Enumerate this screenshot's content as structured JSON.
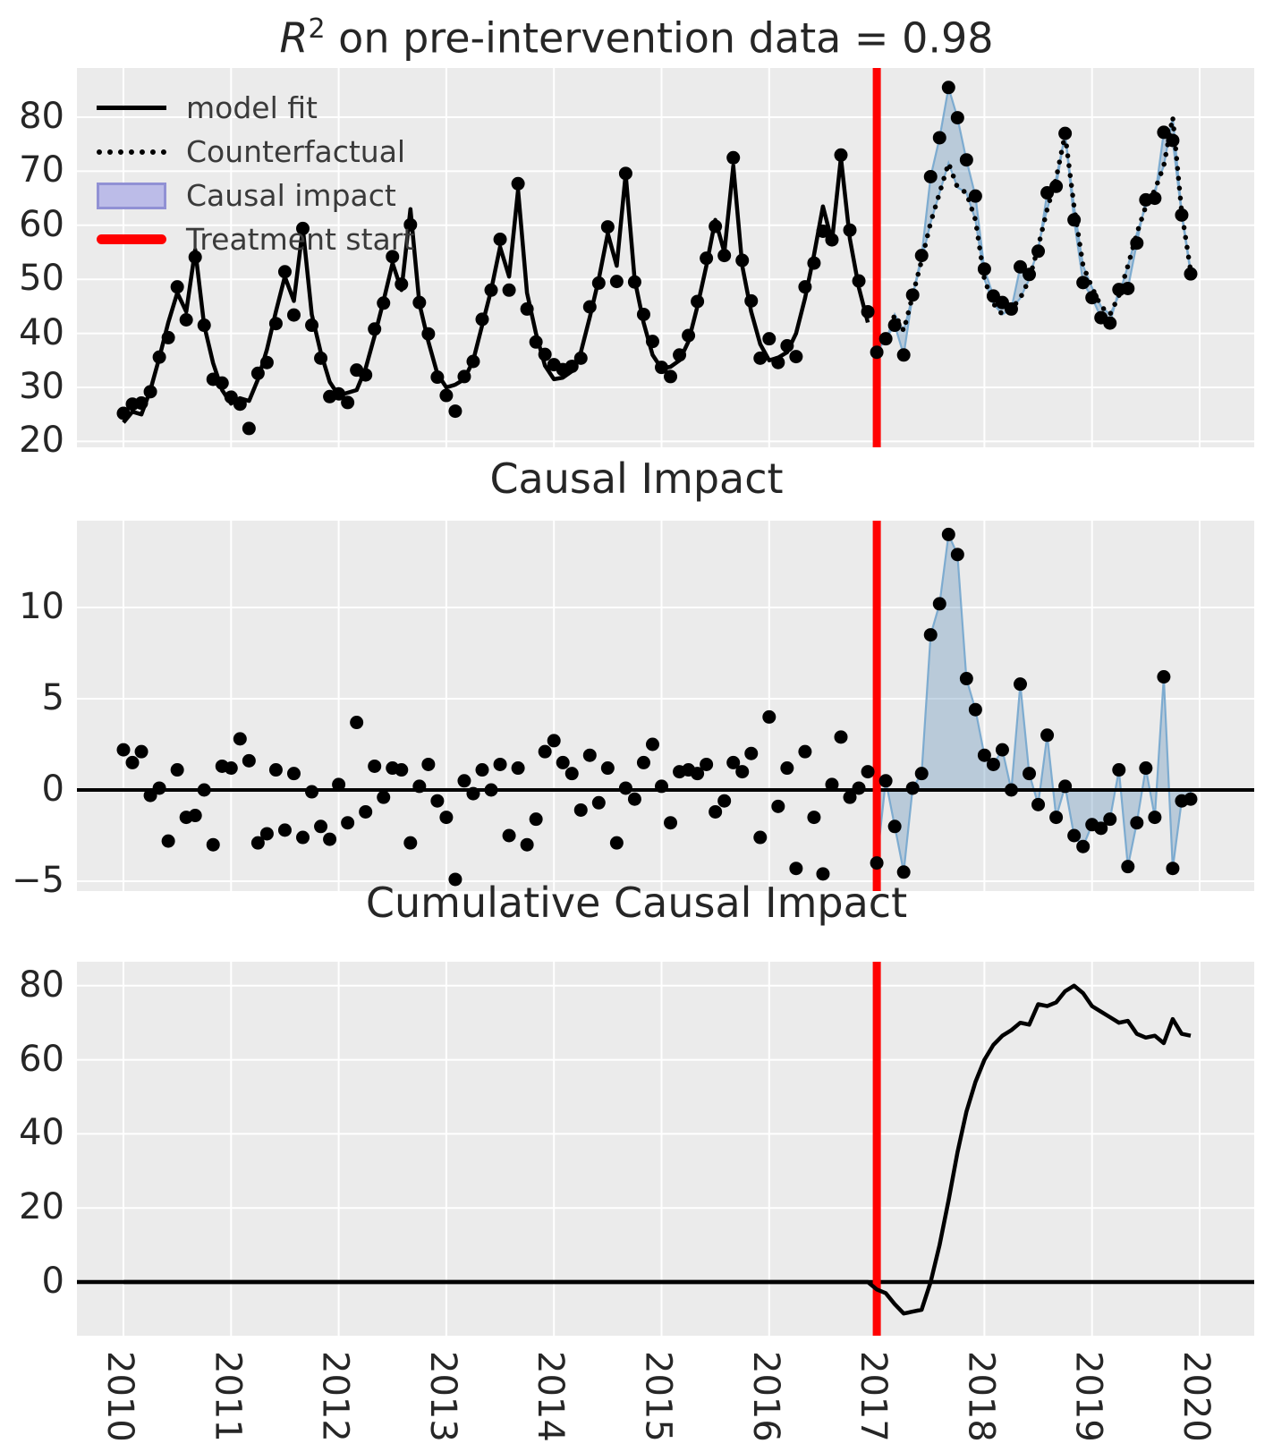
{
  "figure_title_parts": {
    "r": "R",
    "sup": "2",
    "rest": " on pre-intervention data = 0.98"
  },
  "titles": {
    "top": "R² on pre-intervention data = 0.98",
    "middle": "Causal Impact",
    "bottom": "Cumulative Causal Impact"
  },
  "legend": {
    "items": [
      {
        "label": "model fit",
        "sample": "solid-black-line"
      },
      {
        "label": "Counterfactual",
        "sample": "dotted-black-line"
      },
      {
        "label": "Causal impact",
        "sample": "lavender-patch"
      },
      {
        "label": "Treatment start",
        "sample": "red-thick-line"
      }
    ]
  },
  "colors": {
    "plot_bg": "#ebebeb",
    "grid": "#ffffff",
    "series_black": "#000000",
    "treatment_red": "#ff0000",
    "impact_fill": "#5b8db8",
    "impact_edge": "#6fa3cc",
    "legend_patch_fill": "#bcbce8",
    "legend_patch_edge": "#9191d4",
    "text": "#262626"
  },
  "axes": {
    "x_tick_labels": [
      "2010",
      "2011",
      "2012",
      "2013",
      "2014",
      "2015",
      "2016",
      "2017",
      "2018",
      "2019",
      "2020"
    ],
    "x_tick_values": [
      2010,
      2011,
      2012,
      2013,
      2014,
      2015,
      2016,
      2017,
      2018,
      2019,
      2020
    ],
    "treatment_start_x": 2017,
    "top_y_ticks": [
      20,
      30,
      40,
      50,
      60,
      70,
      80
    ],
    "middle_y_ticks": [
      -5,
      0,
      5,
      10
    ],
    "bottom_y_ticks": [
      0,
      20,
      40,
      60,
      80
    ]
  },
  "chart_data": [
    {
      "id": "fit-and-counterfactual",
      "type": "line",
      "title": "R² on pre-intervention data = 0.98",
      "x_start": 2010.0,
      "x_step_years": 0.0833333,
      "xlim": [
        2009.57,
        2020.51
      ],
      "ylim": [
        18.9,
        89.1
      ],
      "yticks": [
        20,
        30,
        40,
        50,
        60,
        70,
        80
      ],
      "grid": true,
      "legend_position": "upper left",
      "treatment_start_x": 2017,
      "series": [
        {
          "name": "observed",
          "style": "scatter-black",
          "values": [
            25.2,
            26.9,
            27.1,
            29.2,
            35.6,
            39.2,
            48.6,
            42.5,
            54.1,
            41.5,
            31.5,
            30.8,
            28.2,
            26.9,
            22.4,
            32.6,
            34.6,
            41.8,
            51.4,
            43.4,
            59.4,
            41.5,
            35.4,
            28.3,
            28.8,
            27.2,
            33.2,
            32.3,
            40.8,
            45.6,
            54.2,
            49.1,
            60.1,
            45.7,
            39.9,
            31.9,
            28.5,
            25.6,
            32.0,
            34.8,
            42.6,
            48.0,
            57.4,
            48.0,
            67.7,
            44.5,
            38.4,
            36.1,
            34.2,
            33.3,
            33.9,
            35.4,
            44.9,
            49.3,
            59.7,
            49.6,
            69.6,
            49.5,
            43.5,
            38.5,
            33.7,
            32.0,
            36.0,
            39.6,
            45.9,
            53.9,
            59.8,
            54.4,
            72.5,
            53.5,
            46.0,
            35.4,
            39.0,
            34.6,
            37.7,
            35.7,
            48.6,
            53.0,
            58.9,
            57.3,
            73.0,
            59.1,
            49.7,
            44.0,
            36.5,
            39.0,
            41.5,
            36.0,
            47.1,
            54.4,
            69.0,
            76.2,
            85.5,
            79.9,
            72.1,
            65.4,
            51.9,
            46.9,
            45.7,
            44.5,
            52.3,
            50.9,
            55.2,
            66.0,
            67.2,
            77.0,
            61.0,
            49.4,
            46.6,
            42.9,
            41.9,
            48.1,
            48.3,
            56.7,
            64.7,
            65.0,
            77.2,
            75.7,
            61.9,
            51.0
          ]
        },
        {
          "name": "model fit",
          "style": "solid-black",
          "x_start": 2010.0,
          "values": [
            23.5,
            25.5,
            25.0,
            29.5,
            35.5,
            42.0,
            47.5,
            44.0,
            55.5,
            41.5,
            34.5,
            29.5,
            27.0,
            28.0,
            27.5,
            31.5,
            37.0,
            44.0,
            50.5,
            46.0,
            59.5,
            43.5,
            36.5,
            31.0,
            28.5,
            29.0,
            29.5,
            33.5,
            39.5,
            46.0,
            53.0,
            48.0,
            63.0,
            45.5,
            38.5,
            32.5,
            30.0,
            30.5,
            31.5,
            35.0,
            41.5,
            48.0,
            56.0,
            50.5,
            66.5,
            47.5,
            40.0,
            34.0,
            31.5,
            31.8,
            33.0,
            36.5,
            43.0,
            50.0,
            58.5,
            52.5,
            69.5,
            50.0,
            42.0,
            36.0,
            33.5,
            33.8,
            35.0,
            38.5,
            45.0,
            52.5,
            61.0,
            55.0,
            71.0,
            52.5,
            44.0,
            38.0,
            35.0,
            35.5,
            36.5,
            40.0,
            46.5,
            54.5,
            63.5,
            57.0,
            72.5,
            57.5,
            48.5,
            42.0
          ]
        },
        {
          "name": "Counterfactual",
          "style": "dotted-black",
          "x_start": 2017.0,
          "values": [
            40.5,
            38.5,
            43.5,
            40.5,
            47.0,
            53.5,
            60.5,
            66.0,
            71.5,
            67.0,
            66.0,
            61.0,
            50.0,
            45.5,
            43.5,
            44.5,
            46.5,
            50.0,
            56.0,
            63.0,
            68.7,
            76.8,
            63.5,
            52.5,
            48.5,
            45.0,
            43.5,
            47.0,
            52.5,
            58.5,
            63.5,
            66.5,
            71.0,
            80.0,
            62.5,
            51.5
          ]
        }
      ],
      "fill_between": {
        "upper": "observed",
        "lower": "Counterfactual",
        "from_x": 2017.0,
        "label": "Causal impact"
      }
    },
    {
      "id": "causal-impact",
      "type": "scatter",
      "title": "Causal Impact",
      "x_start": 2010.0,
      "x_step_years": 0.0833333,
      "xlim": [
        2009.57,
        2020.51
      ],
      "ylim": [
        -5.6,
        14.8
      ],
      "yticks": [
        -5,
        0,
        5,
        10
      ],
      "grid": true,
      "zero_line": true,
      "treatment_start_x": 2017,
      "values": [
        2.2,
        1.5,
        2.1,
        -0.3,
        0.1,
        -2.8,
        1.1,
        -1.5,
        -1.4,
        0.0,
        -3.0,
        1.3,
        1.2,
        2.8,
        1.6,
        -2.9,
        -2.4,
        1.1,
        -2.2,
        0.9,
        -2.6,
        -0.1,
        -2.0,
        -2.7,
        0.3,
        -1.8,
        3.7,
        -1.2,
        1.3,
        -0.4,
        1.2,
        1.1,
        -2.9,
        0.2,
        1.4,
        -0.6,
        -1.5,
        -4.9,
        0.5,
        -0.2,
        1.1,
        0.0,
        1.4,
        -2.5,
        1.2,
        -3.0,
        -1.6,
        2.1,
        2.7,
        1.5,
        0.9,
        -1.1,
        1.9,
        -0.7,
        1.2,
        -2.9,
        0.1,
        -0.5,
        1.5,
        2.5,
        0.2,
        -1.8,
        1.0,
        1.1,
        0.9,
        1.4,
        -1.2,
        -0.6,
        1.5,
        1.0,
        2.0,
        -2.6,
        4.0,
        -0.9,
        1.2,
        -4.3,
        2.1,
        -1.5,
        -4.6,
        0.3,
        2.9,
        -0.4,
        0.1,
        1.0,
        -4.0,
        0.5,
        -2.0,
        -4.5,
        0.1,
        0.9,
        8.5,
        10.2,
        14.0,
        12.9,
        6.1,
        4.4,
        1.9,
        1.4,
        2.2,
        0.0,
        5.8,
        0.9,
        -0.8,
        3.0,
        -1.5,
        0.2,
        -2.5,
        -3.1,
        -1.9,
        -2.1,
        -1.6,
        1.1,
        -4.2,
        -1.8,
        1.2,
        -1.5,
        6.2,
        -4.3,
        -0.6,
        -0.5
      ],
      "fill_to_zero_from_x": 2017.0
    },
    {
      "id": "cumulative-causal-impact",
      "type": "line",
      "title": "Cumulative Causal Impact",
      "x_start": 2010.0,
      "x_step_years": 0.0833333,
      "xlim": [
        2009.57,
        2020.51
      ],
      "ylim": [
        -14.5,
        86.5
      ],
      "yticks": [
        0,
        20,
        40,
        60,
        80
      ],
      "grid": true,
      "zero_line": true,
      "treatment_start_x": 2017,
      "values": [
        0,
        0,
        0,
        0,
        0,
        0,
        0,
        0,
        0,
        0,
        0,
        0,
        0,
        0,
        0,
        0,
        0,
        0,
        0,
        0,
        0,
        0,
        0,
        0,
        0,
        0,
        0,
        0,
        0,
        0,
        0,
        0,
        0,
        0,
        0,
        0,
        0,
        0,
        0,
        0,
        0,
        0,
        0,
        0,
        0,
        0,
        0,
        0,
        0,
        0,
        0,
        0,
        0,
        0,
        0,
        0,
        0,
        0,
        0,
        0,
        0,
        0,
        0,
        0,
        0,
        0,
        0,
        0,
        0,
        0,
        0,
        0,
        0,
        0,
        0,
        0,
        0,
        0,
        0,
        0,
        0,
        0,
        0,
        0,
        -2,
        -3,
        -6,
        -8.5,
        -8,
        -7.5,
        0,
        10,
        22,
        35,
        46,
        54,
        60,
        64,
        66.5,
        68,
        70,
        69.5,
        75,
        74.5,
        75.5,
        78.5,
        80,
        78,
        74.5,
        73,
        71.5,
        70,
        70.5,
        67,
        66,
        66.5,
        64.5,
        71,
        67,
        66.5
      ]
    }
  ]
}
